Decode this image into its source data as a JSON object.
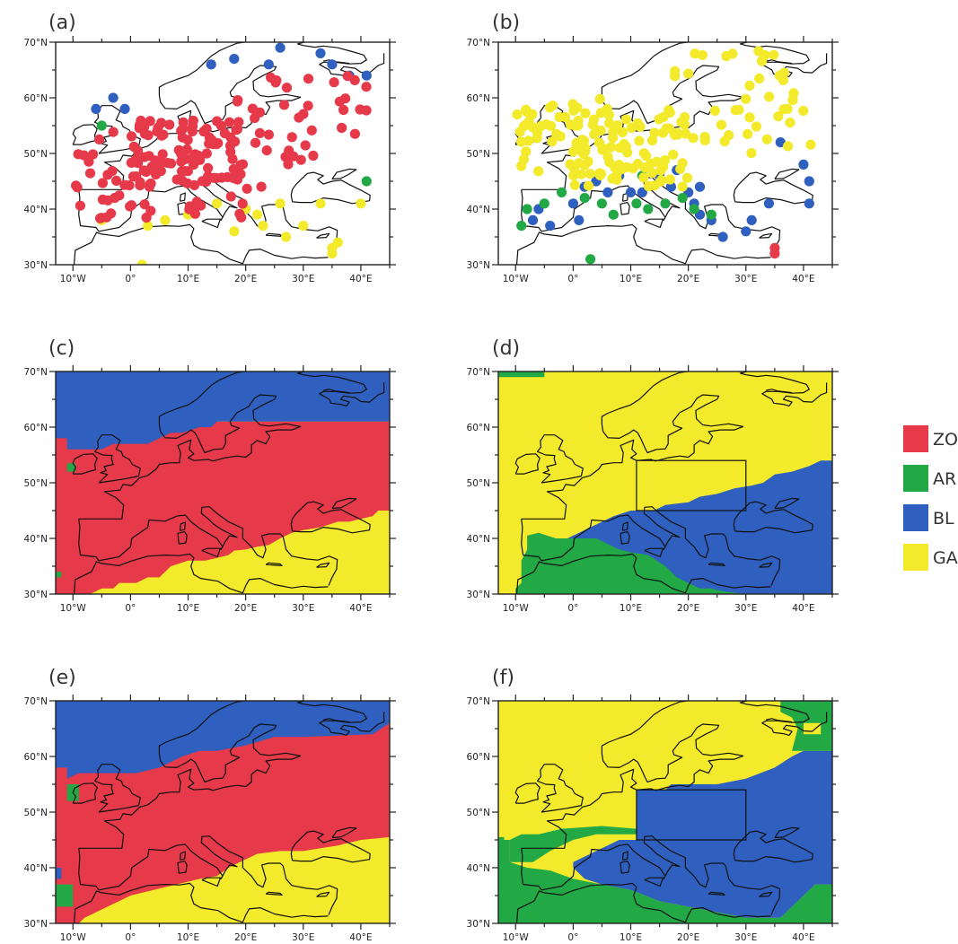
{
  "figure": {
    "legend": [
      {
        "label": "ZO",
        "color": "#e6394a"
      },
      {
        "label": "AR",
        "color": "#22a845"
      },
      {
        "label": "BL",
        "color": "#2f5fbf"
      },
      {
        "label": "GA",
        "color": "#f2ea2a"
      }
    ],
    "lat_labels": [
      "70°N",
      "60°N",
      "50°N",
      "40°N",
      "30°N"
    ],
    "lon_labels": [
      "10°W",
      "0°",
      "10°E",
      "20°E",
      "30°E",
      "40°E"
    ],
    "panels": [
      {
        "id": "a",
        "title": "(a)",
        "kind": "stations"
      },
      {
        "id": "b",
        "title": "(b)",
        "kind": "stations"
      },
      {
        "id": "c",
        "title": "(c)",
        "kind": "regions"
      },
      {
        "id": "d",
        "title": "(d)",
        "kind": "regions",
        "box_extent": [
          11,
          30,
          45,
          54
        ]
      },
      {
        "id": "e",
        "title": "(e)",
        "kind": "regions"
      },
      {
        "id": "f",
        "title": "(f)",
        "kind": "regions",
        "box_extent": [
          11,
          30,
          45,
          54
        ]
      }
    ]
  },
  "colors": {
    "ZO": "#e6394a",
    "AR": "#22a845",
    "BL": "#2f5fbf",
    "GA": "#f2ea2a"
  }
}
